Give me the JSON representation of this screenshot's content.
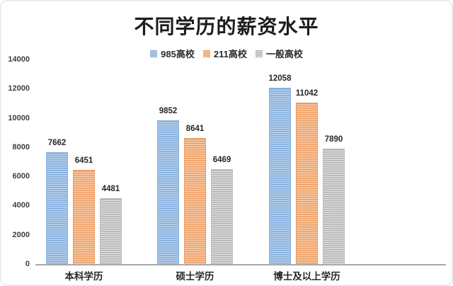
{
  "title": "不同学历的薪资水平",
  "chart_data": {
    "type": "bar",
    "title": "不同学历的薪资水平",
    "categories": [
      "本科学历",
      "硕士学历",
      "博士及以上学历"
    ],
    "series": [
      {
        "name": "985高校",
        "values": [
          7662,
          9852,
          12058
        ],
        "base_color": "#bdd6ee",
        "stripe_color": "#7fa9da",
        "border_color": "#8ab1dd"
      },
      {
        "name": "211高校",
        "values": [
          6451,
          8641,
          11042
        ],
        "base_color": "#f9cfae",
        "stripe_color": "#ec9a5f",
        "border_color": "#eb9c63"
      },
      {
        "name": "一般高校",
        "values": [
          4481,
          6469,
          7890
        ],
        "base_color": "#e0e0e0",
        "stripe_color": "#b1b1b1",
        "border_color": "#bdbdbd"
      }
    ],
    "ylim": [
      0,
      14000
    ],
    "yticks": [
      0,
      2000,
      4000,
      6000,
      8000,
      10000,
      12000,
      14000
    ],
    "grid": false,
    "legend_position": "top",
    "bar_pattern": "horizontal-stripes",
    "value_labels": true
  },
  "colors": {
    "text": "#262626",
    "axis_line": "#a9a9a9",
    "background": "#ffffff"
  }
}
